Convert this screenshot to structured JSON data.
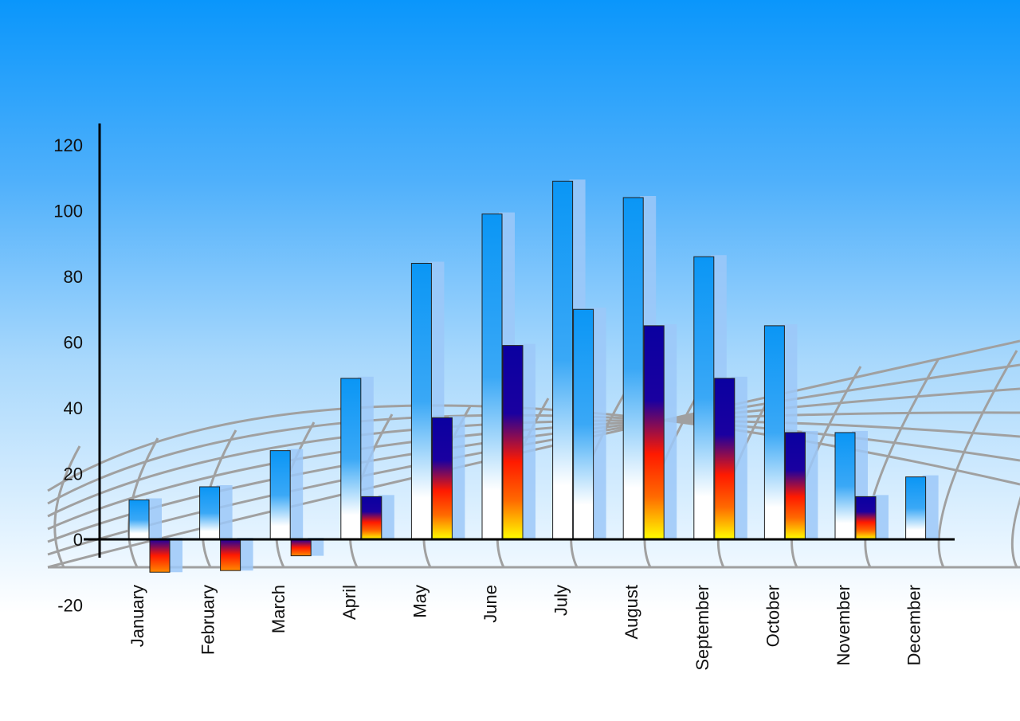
{
  "chart_data": {
    "type": "bar",
    "title": "",
    "xlabel": "",
    "ylabel": "",
    "ylim": [
      -20,
      120
    ],
    "yticks": [
      -20,
      0,
      20,
      40,
      60,
      80,
      100,
      120
    ],
    "grid": false,
    "categories": [
      "January",
      "February",
      "March",
      "April",
      "May",
      "June",
      "July",
      "August",
      "September",
      "October",
      "November",
      "December"
    ],
    "series": [
      {
        "values": [
          12,
          16,
          27,
          49,
          84,
          99,
          109,
          104,
          86,
          65,
          32.5,
          19
        ],
        "color": "#1a9af5"
      },
      {
        "values": [
          -10,
          -9.5,
          -5,
          13,
          37,
          59,
          70,
          65,
          49,
          32.5,
          13,
          null
        ],
        "color": "#0a00a0"
      }
    ],
    "colors": {
      "background_top": "#0a96fb",
      "axis": "#000000",
      "floor_grid": "#a0a0a0"
    }
  }
}
